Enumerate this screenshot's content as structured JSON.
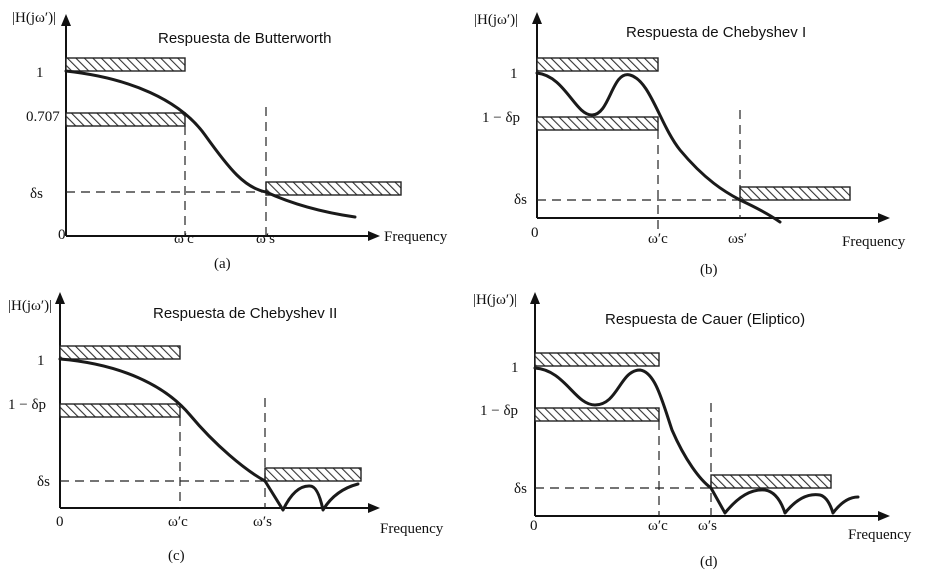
{
  "panels": [
    {
      "title": "Respuesta de Butterworth",
      "y_axis_label": "|H(jω′)|",
      "x_axis_label": "Frequency",
      "origin_label": "0",
      "tick_one": "1",
      "tick_passband": "0.707",
      "tick_stopband": "δs",
      "tick_wc": "ω′c",
      "tick_ws": "ω′s",
      "caption": "(a)"
    },
    {
      "title": "Respuesta de Chebyshev I",
      "y_axis_label": "|H(jω′)|",
      "x_axis_label": "Frequency",
      "origin_label": "0",
      "tick_one": "1",
      "tick_passband": "1 − δp",
      "tick_stopband": "δs",
      "tick_wc": "ω′c",
      "tick_ws": "ωs′",
      "caption": "(b)"
    },
    {
      "title": "Respuesta de Chebyshev  II",
      "y_axis_label": "|H(jω′)|",
      "x_axis_label": "Frequency",
      "origin_label": "0",
      "tick_one": "1",
      "tick_passband": "1 − δp",
      "tick_stopband": "δs",
      "tick_wc": "ω′c",
      "tick_ws": "ω′s",
      "caption": "(c)"
    },
    {
      "title": "Respuesta de Cauer (Eliptico)",
      "y_axis_label": "|H(jω′)|",
      "x_axis_label": "Frequency",
      "origin_label": "0",
      "tick_one": "1",
      "tick_passband": "1 − δp",
      "tick_stopband": "δs",
      "tick_wc": "ω′c",
      "tick_ws": "ω′s",
      "caption": "(d)"
    }
  ]
}
